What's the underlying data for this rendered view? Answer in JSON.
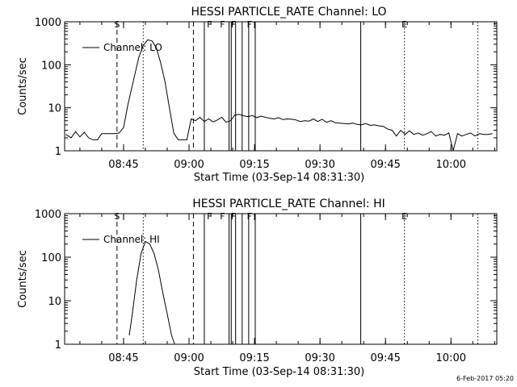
{
  "footer_timestamp": "6-Feb-2017 05:20",
  "chart_data": [
    {
      "type": "line",
      "title": "HESSI PARTICLE_RATE Channel: LO",
      "xlabel": "Start Time (03-Sep-14 08:31:30)",
      "ylabel": "Counts/sec",
      "yscale": "log",
      "ylim": [
        1,
        1000
      ],
      "xlim_minutes_from_0831": [
        0,
        99
      ],
      "xticks": [
        "08:45",
        "09:00",
        "09:15",
        "09:30",
        "09:45",
        "10:00"
      ],
      "yticks": [
        "1",
        "10",
        "100",
        "1000"
      ],
      "legend": {
        "placement": "top-left",
        "label": "Channel: LO"
      },
      "marker_labels": [
        {
          "text": "S",
          "at": "08:43:30"
        },
        {
          "text": "F",
          "at": "09:04:40"
        },
        {
          "text": "F",
          "at": "09:07:40"
        },
        {
          "text": "F",
          "at": "09:10:10"
        },
        {
          "text": "F",
          "at": "09:13:50"
        },
        {
          "text": "E",
          "at": "09:49:20"
        }
      ],
      "vlines": [
        {
          "style": "dashed",
          "at": "08:43:30"
        },
        {
          "style": "dotted",
          "at": "08:49:30"
        },
        {
          "style": "dashed",
          "at": "09:01:00"
        },
        {
          "style": "solid",
          "at": "09:03:30"
        },
        {
          "style": "solid",
          "at": "09:09:10"
        },
        {
          "style": "solid",
          "at": "09:10:40"
        },
        {
          "style": "solid",
          "at": "09:12:10"
        },
        {
          "style": "solid",
          "at": "09:13:40"
        },
        {
          "style": "solid",
          "at": "09:15:10"
        },
        {
          "style": "solid",
          "at": "09:09:40"
        },
        {
          "style": "solid",
          "at": "09:39:20"
        },
        {
          "style": "dotted",
          "at": "09:49:20"
        },
        {
          "style": "dotted",
          "at": "10:06:10"
        }
      ],
      "series": [
        {
          "name": "Channel: LO",
          "x": [
            0.3,
            1.5,
            2.5,
            3.5,
            4.5,
            5.5,
            6.5,
            7.5,
            8.5,
            9.5,
            10.5,
            11.5,
            12.5,
            13.5,
            14.5,
            16,
            17,
            18,
            19,
            20,
            21,
            22,
            23,
            24,
            25,
            26,
            27,
            28,
            29,
            30,
            31,
            32,
            33,
            34,
            35,
            36,
            37,
            38,
            39,
            40,
            41,
            42,
            43,
            44,
            45,
            46,
            47,
            48,
            49,
            50,
            51,
            52,
            53,
            54,
            55,
            56,
            57,
            58,
            59,
            60,
            61,
            62,
            63,
            64,
            65,
            66,
            67,
            68,
            69,
            70,
            71,
            72,
            73,
            74,
            75,
            76,
            77,
            78,
            79,
            80,
            81,
            82,
            83,
            84,
            85,
            86,
            87,
            88,
            89,
            90,
            91,
            92,
            93,
            94,
            95,
            96,
            97,
            98
          ],
          "y": [
            2.4,
            2.0,
            2.8,
            2.1,
            2.7,
            2.0,
            1.8,
            1.8,
            2.5,
            2.5,
            2.5,
            2.5,
            2.6,
            3.5,
            12,
            55,
            150,
            280,
            380,
            360,
            250,
            110,
            40,
            10,
            2.6,
            1.8,
            1.8,
            1.8,
            5.5,
            5.0,
            6.0,
            4.8,
            5.5,
            4.7,
            5.2,
            6.0,
            4.6,
            5.0,
            6.8,
            7.0,
            6.5,
            6.2,
            6.6,
            5.9,
            6.4,
            6.0,
            5.7,
            5.5,
            5.9,
            5.3,
            5.5,
            5.4,
            5.2,
            4.8,
            5.0,
            4.9,
            5.5,
            4.8,
            5.4,
            4.6,
            5.0,
            4.5,
            4.4,
            4.3,
            4.2,
            4.4,
            4.1,
            4.0,
            4.3,
            3.9,
            4.0,
            3.8,
            3.7,
            3.2,
            3.0,
            2.2,
            3.0,
            2.4,
            2.9,
            2.4,
            2.6,
            2.3,
            2.5,
            2.8,
            2.2,
            2.4,
            2.3,
            2.6,
            1.0,
            2.5,
            2.2,
            2.4,
            2.6,
            2.2,
            2.5,
            2.4,
            2.4,
            2.5
          ]
        }
      ]
    },
    {
      "type": "line",
      "title": "HESSI PARTICLE_RATE Channel: HI",
      "xlabel": "Start Time (03-Sep-14 08:31:30)",
      "ylabel": "Counts/sec",
      "yscale": "log",
      "ylim": [
        1,
        1000
      ],
      "xlim_minutes_from_0831": [
        0,
        99
      ],
      "xticks": [
        "08:45",
        "09:00",
        "09:15",
        "09:30",
        "09:45",
        "10:00"
      ],
      "yticks": [
        "1",
        "10",
        "100",
        "1000"
      ],
      "legend": {
        "placement": "top-left",
        "label": "Channel: HI"
      },
      "marker_labels": [
        {
          "text": "S",
          "at": "08:43:30"
        },
        {
          "text": "F",
          "at": "09:04:40"
        },
        {
          "text": "F",
          "at": "09:07:40"
        },
        {
          "text": "F",
          "at": "09:10:10"
        },
        {
          "text": "F",
          "at": "09:13:50"
        },
        {
          "text": "E",
          "at": "09:49:20"
        }
      ],
      "vlines": [
        {
          "style": "dashed",
          "at": "08:43:30"
        },
        {
          "style": "dotted",
          "at": "08:49:30"
        },
        {
          "style": "dashed",
          "at": "09:01:00"
        },
        {
          "style": "solid",
          "at": "09:03:30"
        },
        {
          "style": "solid",
          "at": "09:09:10"
        },
        {
          "style": "solid",
          "at": "09:10:40"
        },
        {
          "style": "solid",
          "at": "09:12:10"
        },
        {
          "style": "solid",
          "at": "09:13:40"
        },
        {
          "style": "solid",
          "at": "09:15:10"
        },
        {
          "style": "solid",
          "at": "09:09:40"
        },
        {
          "style": "solid",
          "at": "09:39:20"
        },
        {
          "style": "dotted",
          "at": "09:49:20"
        },
        {
          "style": "dotted",
          "at": "10:06:10"
        }
      ],
      "series": [
        {
          "name": "Channel: HI",
          "x": [
            14.8,
            15.5,
            16.5,
            17.5,
            18.5,
            19.5,
            20.5,
            21.5,
            22.5,
            23.5,
            24.5,
            25.2
          ],
          "y": [
            1.6,
            5,
            30,
            120,
            230,
            200,
            120,
            50,
            15,
            5,
            1.6,
            1.0
          ]
        }
      ]
    }
  ]
}
